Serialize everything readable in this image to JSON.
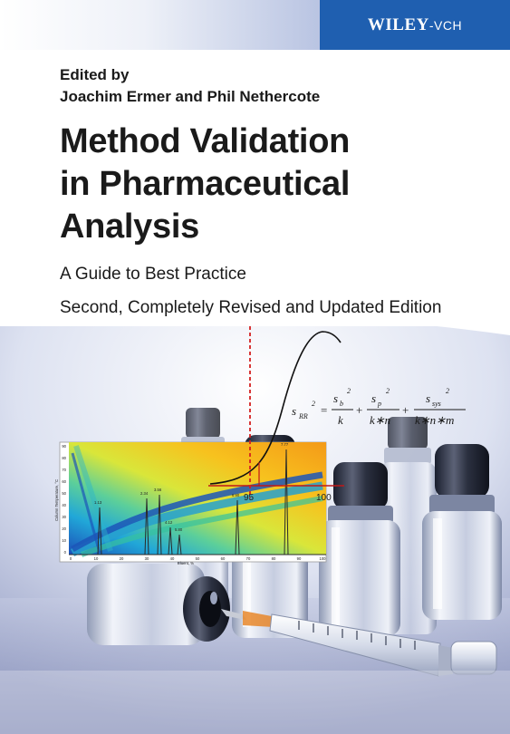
{
  "publisher": {
    "name": "WILEY",
    "suffix": "-VCH"
  },
  "editors_label": "Edited by",
  "editors": "Joachim Ermer and Phil Nethercote",
  "title_lines": [
    "Method Validation",
    "in Pharmaceutical",
    "Analysis"
  ],
  "subtitle": "A Guide to Best Practice",
  "edition": "Second, Completely Revised and Updated Edition",
  "formula": {
    "lhs": "s",
    "lhs_sub": "RR",
    "exp": "2",
    "t1_num": "s",
    "t1_sub": "b",
    "t1_den": "k",
    "t2_num": "s",
    "t2_sub": "p",
    "t2_den": "k∗n",
    "t3_num": "s",
    "t3_sub": "sys",
    "t3_den": "k∗n∗m"
  },
  "axis_marks": {
    "left": "95",
    "right": "100"
  },
  "chromatogram": {
    "y_label": "Column Temperature, °C",
    "x_label": "Eluent, %",
    "y_ticks": [
      "90",
      "80",
      "70",
      "60",
      "50",
      "40",
      "30",
      "20",
      "10",
      "0"
    ],
    "x_ticks": [
      "0",
      "10",
      "20",
      "30",
      "40",
      "50",
      "60",
      "70",
      "80",
      "90",
      "100"
    ],
    "peak_labels": [
      "1.13",
      "2.34",
      "3.56",
      "4.12",
      "5.80",
      "6.90",
      "7.77"
    ]
  },
  "colors": {
    "publisher_blue": "#1f5fb0",
    "title_text": "#1a1a1a",
    "dashed_line": "#d42020"
  }
}
